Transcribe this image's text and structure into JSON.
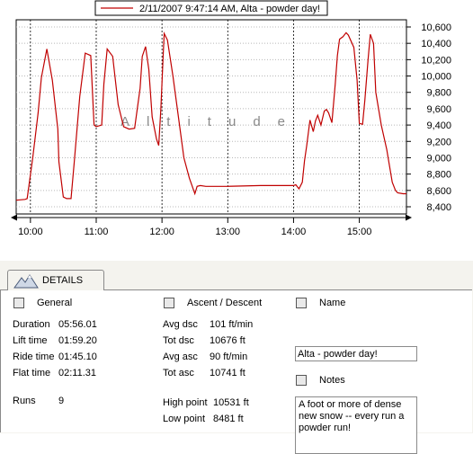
{
  "chart_data": {
    "type": "line",
    "legend": "2/11/2007 9:47:14 AM, Alta - powder day!",
    "legend_position": "top-center",
    "watermark": "Altitude",
    "line_color": "#c00000",
    "grid": true,
    "x_ticks": [
      "10:00",
      "11:00",
      "12:00",
      "13:00",
      "14:00",
      "15:00"
    ],
    "y_ticks": [
      "10,600",
      "10,400",
      "10,200",
      "10,000",
      "9,800",
      "9,600",
      "9,400",
      "9,200",
      "9,000",
      "8,800",
      "8,600",
      "8,400"
    ],
    "xlim": [
      "9:47",
      "15:43"
    ],
    "ylim": [
      8400,
      10600
    ],
    "x": [
      "9:47",
      "9:55",
      "9:57",
      "10:02",
      "10:07",
      "10:10",
      "10:15",
      "10:20",
      "10:25",
      "10:26",
      "10:30",
      "10:33",
      "10:37",
      "10:40",
      "10:45",
      "10:50",
      "10:55",
      "10:58",
      "11:00",
      "11:05",
      "11:07",
      "11:10",
      "11:15",
      "11:20",
      "11:25",
      "11:30",
      "11:35",
      "11:40",
      "11:42",
      "11:45",
      "11:48",
      "11:51",
      "11:55",
      "11:57",
      "11:59",
      "12:01",
      "12:02",
      "12:05",
      "12:10",
      "12:15",
      "12:20",
      "12:25",
      "12:30",
      "12:32",
      "12:35",
      "12:40",
      "13:00",
      "13:30",
      "14:00",
      "14:02",
      "14:05",
      "14:08",
      "14:10",
      "14:12",
      "14:15",
      "14:18",
      "14:20",
      "14:22",
      "14:25",
      "14:28",
      "14:30",
      "14:32",
      "14:35",
      "14:38",
      "14:40",
      "14:42",
      "14:45",
      "14:48",
      "14:50",
      "14:55",
      "14:58",
      "15:00",
      "15:03",
      "15:05",
      "15:08",
      "15:10",
      "15:13",
      "15:15",
      "15:20",
      "15:25",
      "15:30",
      "15:33",
      "15:35",
      "15:40",
      "15:43"
    ],
    "y": [
      8480,
      8490,
      8500,
      8990,
      9550,
      9980,
      10330,
      9950,
      9350,
      8950,
      8520,
      8500,
      8500,
      8950,
      9750,
      10280,
      10250,
      9400,
      9380,
      9400,
      9900,
      10330,
      10240,
      9650,
      9380,
      9350,
      9360,
      9850,
      10240,
      10360,
      10080,
      9500,
      9230,
      9150,
      9600,
      10240,
      10520,
      10440,
      10000,
      9500,
      9000,
      8750,
      8560,
      8650,
      8660,
      8650,
      8650,
      8660,
      8660,
      8670,
      8620,
      8700,
      8960,
      9150,
      9460,
      9320,
      9450,
      9520,
      9400,
      9570,
      9590,
      9550,
      9430,
      9900,
      10250,
      10450,
      10480,
      10530,
      10500,
      10350,
      9950,
      9420,
      9410,
      9700,
      10200,
      10510,
      10400,
      9800,
      9400,
      9100,
      8700,
      8600,
      8570,
      8560,
      8560
    ]
  },
  "details": {
    "tab_label": "DETAILS",
    "general": {
      "header": "General",
      "rows": [
        {
          "label": "Duration",
          "value": "05:56.01"
        },
        {
          "label": "Lift time",
          "value": "01:59.20"
        },
        {
          "label": "Ride time",
          "value": "01:45.10"
        },
        {
          "label": "Flat time",
          "value": "02:11.31"
        }
      ],
      "runs_label": "Runs",
      "runs_value": "9"
    },
    "ascent": {
      "header": "Ascent / Descent",
      "rows": [
        {
          "label": "Avg dsc",
          "value": "101 ft/min"
        },
        {
          "label": "Tot dsc",
          "value": "10676 ft"
        },
        {
          "label": "Avg asc",
          "value": "90 ft/min"
        },
        {
          "label": "Tot asc",
          "value": "10741 ft"
        }
      ],
      "high_label": "High point",
      "high_value": "10531 ft",
      "low_label": "Low point",
      "low_value": "8481 ft"
    },
    "name": {
      "header": "Name",
      "value": "Alta - powder day!"
    },
    "notes": {
      "header": "Notes",
      "value": "A foot or more of dense new snow -- every run a powder run!"
    }
  }
}
